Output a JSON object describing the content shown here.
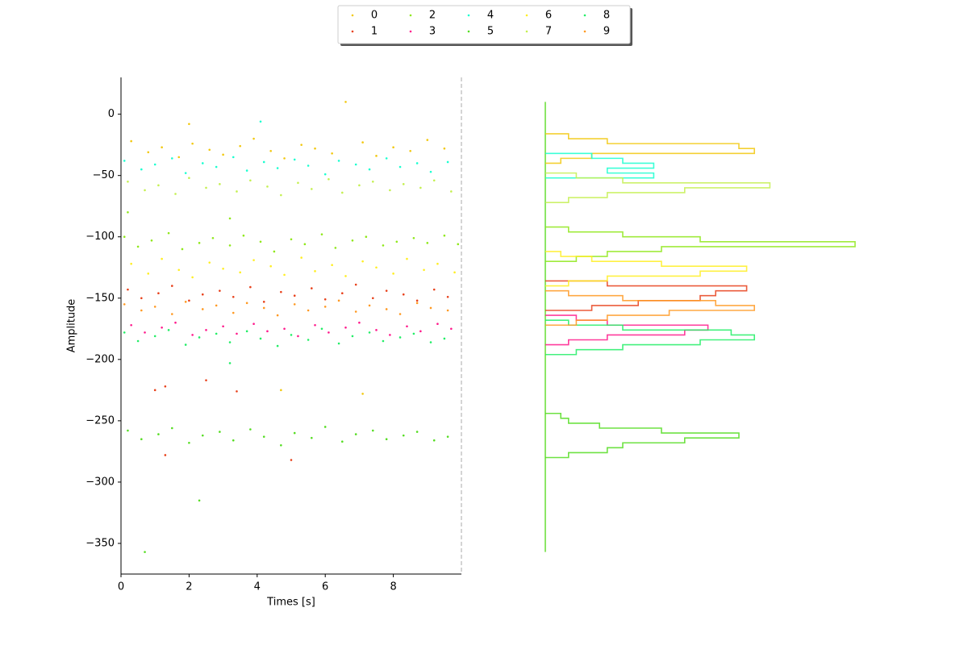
{
  "chart_data": [
    {
      "type": "scatter",
      "xlabel": "Times [s]",
      "ylabel": "Amplitude",
      "xlim": [
        0,
        10
      ],
      "ylim": [
        -375,
        30
      ],
      "xticks": [
        0,
        2,
        4,
        6,
        8
      ],
      "yticks": [
        {
          "value": 0,
          "label": "0"
        },
        {
          "value": -50,
          "label": "−50"
        },
        {
          "value": -100,
          "label": "−100"
        },
        {
          "value": -150,
          "label": "−150"
        },
        {
          "value": -200,
          "label": "−200"
        },
        {
          "value": -250,
          "label": "−250"
        },
        {
          "value": -300,
          "label": "−300"
        },
        {
          "value": -350,
          "label": "−350"
        }
      ],
      "legend": "upper center",
      "legend_columns": 5,
      "series": [
        {
          "name": "0",
          "color": "#f2c80f",
          "x": [
            0.3,
            0.8,
            1.2,
            1.7,
            2.1,
            2.6,
            3.0,
            3.5,
            3.9,
            4.4,
            4.8,
            5.3,
            5.7,
            6.2,
            6.6,
            7.1,
            7.5,
            8.0,
            8.5,
            9.0,
            9.5,
            2.0,
            4.7,
            7.1
          ],
          "values": [
            -22,
            -31,
            -27,
            -35,
            -24,
            -29,
            -33,
            -26,
            -20,
            -30,
            -36,
            -25,
            -28,
            -32,
            10,
            -23,
            -34,
            -27,
            -30,
            -21,
            -28,
            -8,
            -225,
            -228
          ]
        },
        {
          "name": "1",
          "color": "#e8401a",
          "x": [
            0.2,
            0.6,
            1.1,
            1.5,
            2.0,
            2.4,
            2.9,
            3.3,
            3.8,
            4.2,
            4.7,
            5.1,
            5.6,
            6.0,
            6.5,
            6.9,
            7.4,
            7.8,
            8.3,
            8.7,
            9.2,
            9.6,
            1.0,
            1.3,
            2.5,
            3.4,
            5.0,
            1.3
          ],
          "values": [
            -143,
            -150,
            -146,
            -140,
            -152,
            -147,
            -144,
            -149,
            -141,
            -153,
            -145,
            -148,
            -142,
            -151,
            -146,
            -139,
            -150,
            -144,
            -147,
            -152,
            -143,
            -149,
            -225,
            -222,
            -217,
            -226,
            -282,
            -278
          ]
        },
        {
          "name": "2",
          "color": "#8fe81a",
          "x": [
            0.1,
            0.5,
            0.9,
            1.4,
            1.8,
            2.3,
            2.7,
            3.2,
            3.6,
            4.1,
            4.5,
            5.0,
            5.4,
            5.9,
            6.3,
            6.8,
            7.2,
            7.7,
            8.1,
            8.6,
            9.0,
            9.5,
            9.9,
            0.2,
            3.2
          ],
          "values": [
            -100,
            -108,
            -103,
            -97,
            -110,
            -105,
            -101,
            -107,
            -99,
            -104,
            -112,
            -102,
            -106,
            -98,
            -109,
            -103,
            -100,
            -107,
            -104,
            -101,
            -105,
            -99,
            -106,
            -80,
            -85
          ]
        },
        {
          "name": "3",
          "color": "#ff1a8c",
          "x": [
            0.3,
            0.7,
            1.2,
            1.6,
            2.1,
            2.5,
            3.0,
            3.4,
            3.9,
            4.3,
            4.8,
            5.2,
            5.7,
            6.1,
            6.6,
            7.0,
            7.5,
            7.9,
            8.4,
            8.8,
            9.3,
            9.7
          ],
          "values": [
            -172,
            -178,
            -174,
            -170,
            -180,
            -176,
            -173,
            -179,
            -171,
            -177,
            -175,
            -181,
            -172,
            -178,
            -174,
            -170,
            -176,
            -180,
            -173,
            -177,
            -171,
            -175
          ]
        },
        {
          "name": "4",
          "color": "#1affd0",
          "x": [
            0.1,
            0.6,
            1.0,
            1.5,
            1.9,
            2.4,
            2.8,
            3.3,
            3.7,
            4.2,
            4.6,
            5.1,
            5.5,
            6.0,
            6.4,
            6.9,
            7.3,
            7.8,
            8.2,
            8.7,
            9.1,
            9.6,
            4.1
          ],
          "values": [
            -38,
            -45,
            -41,
            -36,
            -48,
            -40,
            -43,
            -35,
            -46,
            -39,
            -44,
            -37,
            -42,
            -49,
            -38,
            -41,
            -45,
            -36,
            -43,
            -40,
            -47,
            -39,
            -6
          ]
        },
        {
          "name": "5",
          "color": "#55dd22",
          "x": [
            0.2,
            0.6,
            1.1,
            1.5,
            2.0,
            2.4,
            2.9,
            3.3,
            3.8,
            4.2,
            4.7,
            5.1,
            5.6,
            6.0,
            6.5,
            6.9,
            7.4,
            7.8,
            8.3,
            8.7,
            9.2,
            9.6,
            0.7,
            2.3
          ],
          "values": [
            -258,
            -265,
            -261,
            -256,
            -268,
            -262,
            -259,
            -266,
            -257,
            -263,
            -270,
            -260,
            -264,
            -255,
            -267,
            -261,
            -258,
            -265,
            -262,
            -259,
            -266,
            -263,
            -357,
            -315
          ]
        },
        {
          "name": "6",
          "color": "#ffee22",
          "x": [
            0.3,
            0.8,
            1.2,
            1.7,
            2.1,
            2.6,
            3.0,
            3.5,
            3.9,
            4.4,
            4.8,
            5.3,
            5.7,
            6.2,
            6.6,
            7.1,
            7.5,
            8.0,
            8.4,
            8.9,
            9.3,
            9.8
          ],
          "values": [
            -122,
            -130,
            -118,
            -127,
            -133,
            -121,
            -126,
            -129,
            -119,
            -124,
            -131,
            -117,
            -128,
            -123,
            -132,
            -120,
            -125,
            -130,
            -118,
            -127,
            -122,
            -129
          ]
        },
        {
          "name": "7",
          "color": "#c4f050",
          "x": [
            0.2,
            0.7,
            1.1,
            1.6,
            2.0,
            2.5,
            2.9,
            3.4,
            3.8,
            4.3,
            4.7,
            5.2,
            5.6,
            6.1,
            6.5,
            7.0,
            7.4,
            7.9,
            8.3,
            8.8,
            9.2,
            9.7
          ],
          "values": [
            -55,
            -62,
            -58,
            -65,
            -52,
            -60,
            -57,
            -63,
            -54,
            -59,
            -66,
            -56,
            -61,
            -53,
            -64,
            -58,
            -55,
            -62,
            -57,
            -60,
            -54,
            -63
          ]
        },
        {
          "name": "8",
          "color": "#22ee66",
          "x": [
            0.1,
            0.5,
            1.0,
            1.4,
            1.9,
            2.3,
            2.8,
            3.2,
            3.7,
            4.1,
            4.6,
            5.0,
            5.5,
            5.9,
            6.4,
            6.8,
            7.3,
            7.7,
            8.2,
            8.6,
            9.1,
            9.5,
            3.2
          ],
          "values": [
            -178,
            -185,
            -181,
            -176,
            -188,
            -182,
            -179,
            -186,
            -177,
            -183,
            -189,
            -180,
            -184,
            -175,
            -187,
            -181,
            -178,
            -185,
            -182,
            -179,
            -186,
            -183,
            -203
          ]
        },
        {
          "name": "9",
          "color": "#ff9922",
          "x": [
            0.1,
            0.6,
            1.0,
            1.5,
            1.9,
            2.4,
            2.8,
            3.3,
            3.7,
            4.2,
            4.6,
            5.1,
            5.5,
            6.0,
            6.4,
            6.9,
            7.3,
            7.8,
            8.2,
            8.7,
            9.1,
            9.6
          ],
          "values": [
            -155,
            -160,
            -157,
            -163,
            -153,
            -159,
            -156,
            -162,
            -154,
            -158,
            -164,
            -155,
            -160,
            -157,
            -152,
            -161,
            -156,
            -159,
            -163,
            -154,
            -158,
            -160
          ]
        }
      ]
    },
    {
      "type": "histogram",
      "orientation": "horizontal",
      "xlim": [
        0,
        40
      ],
      "ylim": [
        -375,
        30
      ],
      "series": [
        {
          "color": "#f2c80f",
          "bins": [
            -40,
            -36,
            -32,
            -28,
            -24,
            -20,
            -16
          ],
          "values": [
            2,
            6,
            27,
            25,
            8,
            3
          ]
        },
        {
          "color": "#e8401a",
          "bins": [
            -160,
            -156,
            -152,
            -148,
            -144,
            -140,
            -136
          ],
          "values": [
            6,
            12,
            20,
            22,
            26,
            8
          ]
        },
        {
          "color": "#8fe81a",
          "bins": [
            -120,
            -116,
            -112,
            -108,
            -104,
            -100,
            -96,
            -92
          ],
          "values": [
            4,
            8,
            15,
            40,
            20,
            10,
            3
          ]
        },
        {
          "color": "#ff1a8c",
          "bins": [
            -188,
            -184,
            -180,
            -176,
            -172,
            -168,
            -164
          ],
          "values": [
            3,
            8,
            18,
            21,
            8,
            4
          ]
        },
        {
          "color": "#1affd0",
          "bins": [
            -52,
            -48,
            -44,
            -40,
            -36,
            -32
          ],
          "values": [
            14,
            8,
            14,
            10,
            6
          ]
        },
        {
          "color": "#55dd22",
          "bins": [
            -280,
            -276,
            -272,
            -268,
            -264,
            -260,
            -256,
            -252,
            -248,
            -244
          ],
          "values": [
            3,
            8,
            10,
            18,
            25,
            15,
            7,
            3,
            2
          ]
        },
        {
          "color": "#ffee22",
          "bins": [
            -140,
            -136,
            -132,
            -128,
            -124,
            -120,
            -116,
            -112
          ],
          "values": [
            3,
            8,
            20,
            26,
            15,
            6,
            2
          ]
        },
        {
          "color": "#c4f050",
          "bins": [
            -72,
            -68,
            -64,
            -60,
            -56,
            -52,
            -48
          ],
          "values": [
            3,
            8,
            18,
            29,
            10,
            4
          ]
        },
        {
          "color": "#22ee66",
          "bins": [
            -196,
            -192,
            -188,
            -184,
            -180,
            -176,
            -172,
            -168
          ],
          "values": [
            4,
            10,
            20,
            27,
            24,
            10,
            3
          ]
        },
        {
          "color": "#ff9922",
          "bins": [
            -172,
            -168,
            -164,
            -160,
            -156,
            -152,
            -148,
            -144
          ],
          "values": [
            4,
            8,
            16,
            27,
            22,
            10,
            3
          ]
        }
      ]
    }
  ]
}
